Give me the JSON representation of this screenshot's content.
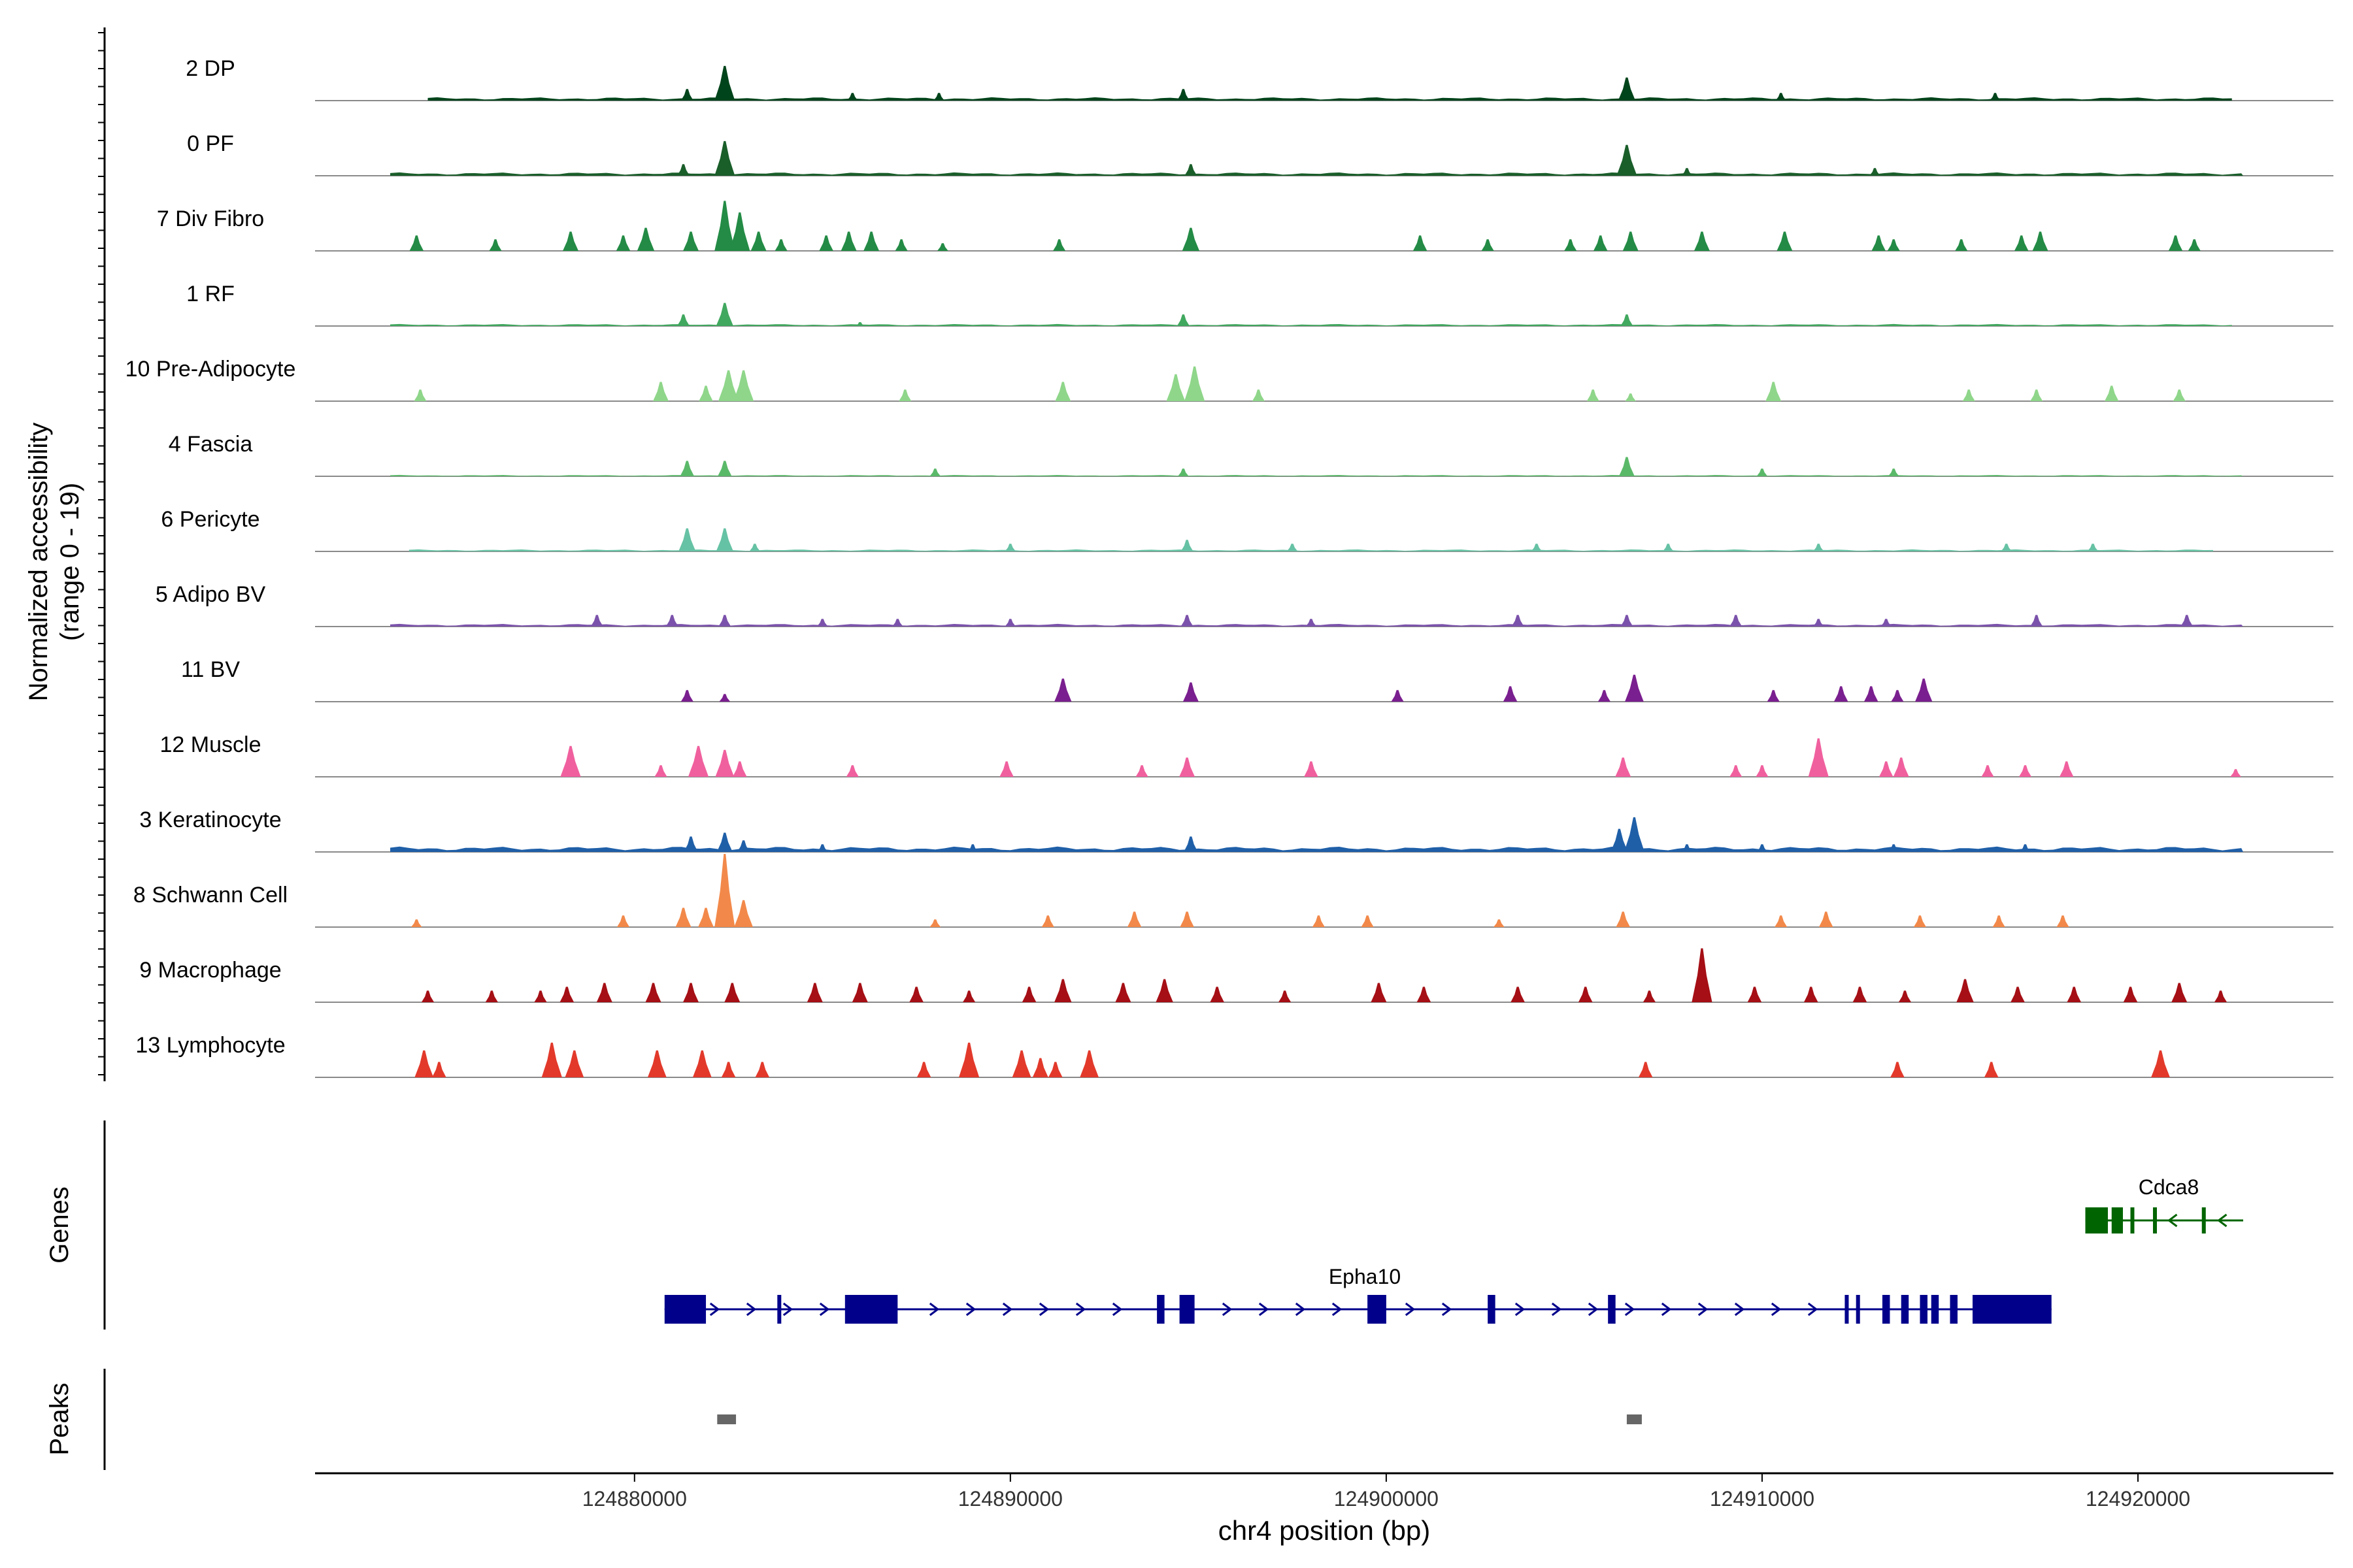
{
  "chart_data": {
    "type": "area",
    "title": "",
    "ylabel_line1": "Normalized accessibility",
    "ylabel_line2": "(range 0 - 19)",
    "xlabel": "chr4 position (bp)",
    "xlim": [
      124871500,
      124925200
    ],
    "ylim": [
      0,
      19
    ],
    "x_ticks": [
      124880000,
      124890000,
      124900000,
      124910000,
      124920000
    ],
    "x_tick_labels": [
      "124880000",
      "124890000",
      "124900000",
      "124910000",
      "124920000"
    ],
    "section_labels": {
      "genes": "Genes",
      "peaks": "Peaks"
    },
    "series": [
      {
        "name": "2 DP",
        "color": "#00441b",
        "baseline": 0.25,
        "spread": [
          124874500,
          124922500
        ],
        "peaks": [
          [
            124882400,
            9
          ],
          [
            124906400,
            6
          ],
          [
            124881400,
            3
          ],
          [
            124894600,
            3
          ],
          [
            124885800,
            2
          ],
          [
            124910500,
            2
          ],
          [
            124916200,
            2
          ],
          [
            124888100,
            2
          ]
        ]
      },
      {
        "name": "0 PF",
        "color": "#1a5e2a",
        "baseline": 0.25,
        "spread": [
          124873500,
          124922800
        ],
        "peaks": [
          [
            124882400,
            9
          ],
          [
            124906400,
            8
          ],
          [
            124881300,
            3
          ],
          [
            124894800,
            3
          ],
          [
            124908000,
            2
          ],
          [
            124913000,
            2
          ]
        ]
      },
      {
        "name": "7 Div Fibro",
        "color": "#238b45",
        "baseline": 0,
        "spread": null,
        "peaks": [
          [
            124874200,
            4
          ],
          [
            124876300,
            3
          ],
          [
            124878300,
            5
          ],
          [
            124879700,
            4
          ],
          [
            124880300,
            6
          ],
          [
            124881500,
            5
          ],
          [
            124882400,
            13
          ],
          [
            124882800,
            10
          ],
          [
            124883300,
            5
          ],
          [
            124883900,
            3
          ],
          [
            124885100,
            4
          ],
          [
            124885700,
            5
          ],
          [
            124886300,
            5
          ],
          [
            124887100,
            3
          ],
          [
            124888200,
            2
          ],
          [
            124891300,
            3
          ],
          [
            124894800,
            6
          ],
          [
            124900900,
            4
          ],
          [
            124902700,
            3
          ],
          [
            124904900,
            3
          ],
          [
            124905700,
            4
          ],
          [
            124906500,
            5
          ],
          [
            124908400,
            5
          ],
          [
            124910600,
            5
          ],
          [
            124913100,
            4
          ],
          [
            124913500,
            3
          ],
          [
            124915300,
            3
          ],
          [
            124916900,
            4
          ],
          [
            124917400,
            5
          ],
          [
            124921000,
            4
          ],
          [
            124921500,
            3
          ]
        ]
      },
      {
        "name": "1 RF",
        "color": "#41a85f",
        "baseline": 0.15,
        "spread": [
          124873500,
          124922500
        ],
        "peaks": [
          [
            124882400,
            6
          ],
          [
            124881300,
            3
          ],
          [
            124894600,
            3
          ],
          [
            124906400,
            3
          ],
          [
            124886000,
            1
          ]
        ]
      },
      {
        "name": "10 Pre-Adipocyte",
        "color": "#8fd68a",
        "baseline": 0,
        "spread": null,
        "peaks": [
          [
            124874300,
            3
          ],
          [
            124880700,
            5
          ],
          [
            124881900,
            4
          ],
          [
            124882500,
            8
          ],
          [
            124882900,
            8
          ],
          [
            124887200,
            3
          ],
          [
            124891400,
            5
          ],
          [
            124894400,
            7
          ],
          [
            124894900,
            9
          ],
          [
            124896600,
            3
          ],
          [
            124905500,
            3
          ],
          [
            124906500,
            2
          ],
          [
            124910300,
            5
          ],
          [
            124915500,
            3
          ],
          [
            124917300,
            3
          ],
          [
            124919300,
            4
          ],
          [
            124921100,
            3
          ]
        ]
      },
      {
        "name": "4 Fascia",
        "color": "#5ab969",
        "baseline": 0.1,
        "spread": [
          124873500,
          124922800
        ],
        "peaks": [
          [
            124881400,
            4
          ],
          [
            124882400,
            4
          ],
          [
            124906400,
            5
          ],
          [
            124894600,
            2
          ],
          [
            124888000,
            2
          ],
          [
            124910000,
            2
          ],
          [
            124913500,
            2
          ]
        ]
      },
      {
        "name": "6 Pericyte",
        "color": "#66c2a4",
        "baseline": 0.15,
        "spread": [
          124874000,
          124922000
        ],
        "peaks": [
          [
            124881400,
            6
          ],
          [
            124882400,
            6
          ],
          [
            124883200,
            2
          ],
          [
            124894700,
            3
          ],
          [
            124890000,
            2
          ],
          [
            124897500,
            2
          ],
          [
            124904000,
            2
          ],
          [
            124907500,
            2
          ],
          [
            124911500,
            2
          ],
          [
            124916500,
            2
          ],
          [
            124918800,
            2
          ]
        ]
      },
      {
        "name": "5 Adipo BV",
        "color": "#7b52ab",
        "baseline": 0.2,
        "spread": [
          124873500,
          124922800
        ],
        "peaks": [
          [
            124879000,
            3
          ],
          [
            124881000,
            3
          ],
          [
            124882400,
            3
          ],
          [
            124885000,
            2
          ],
          [
            124887000,
            2
          ],
          [
            124890000,
            2
          ],
          [
            124894700,
            3
          ],
          [
            124898000,
            2
          ],
          [
            124903500,
            3
          ],
          [
            124906400,
            3
          ],
          [
            124909300,
            3
          ],
          [
            124911500,
            2
          ],
          [
            124913300,
            2
          ],
          [
            124917300,
            3
          ],
          [
            124921300,
            3
          ]
        ]
      },
      {
        "name": "11 BV",
        "color": "#7a1f8f",
        "baseline": 0,
        "spread": null,
        "peaks": [
          [
            124881400,
            3
          ],
          [
            124882400,
            2
          ],
          [
            124891400,
            6
          ],
          [
            124894800,
            5
          ],
          [
            124900300,
            3
          ],
          [
            124903300,
            4
          ],
          [
            124905800,
            3
          ],
          [
            124906600,
            7
          ],
          [
            124910300,
            3
          ],
          [
            124912100,
            4
          ],
          [
            124912900,
            4
          ],
          [
            124913600,
            3
          ],
          [
            124914300,
            6
          ]
        ]
      },
      {
        "name": "12 Muscle",
        "color": "#f0609e",
        "baseline": 0,
        "spread": null,
        "peaks": [
          [
            124878300,
            8
          ],
          [
            124880700,
            3
          ],
          [
            124881700,
            8
          ],
          [
            124882400,
            7
          ],
          [
            124882800,
            4
          ],
          [
            124885800,
            3
          ],
          [
            124889900,
            4
          ],
          [
            124893500,
            3
          ],
          [
            124894700,
            5
          ],
          [
            124898000,
            4
          ],
          [
            124906300,
            5
          ],
          [
            124909300,
            3
          ],
          [
            124910000,
            3
          ],
          [
            124911500,
            10
          ],
          [
            124913300,
            4
          ],
          [
            124913700,
            5
          ],
          [
            124916000,
            3
          ],
          [
            124917000,
            3
          ],
          [
            124918100,
            4
          ],
          [
            124922600,
            2
          ]
        ]
      },
      {
        "name": "3 Keratinocyte",
        "color": "#1f5fa8",
        "baseline": 0.4,
        "spread": [
          124873500,
          124922800
        ],
        "peaks": [
          [
            124881500,
            4
          ],
          [
            124882400,
            5
          ],
          [
            124882900,
            3
          ],
          [
            124894800,
            4
          ],
          [
            124906200,
            6
          ],
          [
            124906600,
            9
          ],
          [
            124908000,
            2
          ],
          [
            124910000,
            2
          ],
          [
            124913500,
            2
          ],
          [
            124917000,
            2
          ],
          [
            124885000,
            2
          ],
          [
            124889000,
            2
          ]
        ]
      },
      {
        "name": "8 Schwann Cell",
        "color": "#f2894a",
        "baseline": 0,
        "spread": null,
        "peaks": [
          [
            124874200,
            2
          ],
          [
            124879700,
            3
          ],
          [
            124881300,
            5
          ],
          [
            124881900,
            5
          ],
          [
            124882400,
            19
          ],
          [
            124882900,
            7
          ],
          [
            124888000,
            2
          ],
          [
            124891000,
            3
          ],
          [
            124893300,
            4
          ],
          [
            124894700,
            4
          ],
          [
            124898200,
            3
          ],
          [
            124899500,
            3
          ],
          [
            124903000,
            2
          ],
          [
            124906300,
            4
          ],
          [
            124910500,
            3
          ],
          [
            124911700,
            4
          ],
          [
            124914200,
            3
          ],
          [
            124916300,
            3
          ],
          [
            124918000,
            3
          ]
        ]
      },
      {
        "name": "9 Macrophage",
        "color": "#a50f15",
        "baseline": 0,
        "spread": null,
        "peaks": [
          [
            124874500,
            3
          ],
          [
            124876200,
            3
          ],
          [
            124877500,
            3
          ],
          [
            124878200,
            4
          ],
          [
            124879200,
            5
          ],
          [
            124880500,
            5
          ],
          [
            124881500,
            5
          ],
          [
            124882600,
            5
          ],
          [
            124884800,
            5
          ],
          [
            124886000,
            5
          ],
          [
            124887500,
            4
          ],
          [
            124888900,
            3
          ],
          [
            124890500,
            4
          ],
          [
            124891400,
            6
          ],
          [
            124893000,
            5
          ],
          [
            124894100,
            6
          ],
          [
            124895500,
            4
          ],
          [
            124897300,
            3
          ],
          [
            124899800,
            5
          ],
          [
            124901000,
            4
          ],
          [
            124903500,
            4
          ],
          [
            124905300,
            4
          ],
          [
            124907000,
            3
          ],
          [
            124908400,
            14
          ],
          [
            124909800,
            4
          ],
          [
            124911300,
            4
          ],
          [
            124912600,
            4
          ],
          [
            124913800,
            3
          ],
          [
            124915400,
            6
          ],
          [
            124916800,
            4
          ],
          [
            124918300,
            4
          ],
          [
            124919800,
            4
          ],
          [
            124921100,
            5
          ],
          [
            124922200,
            3
          ]
        ]
      },
      {
        "name": "13 Lymphocyte",
        "color": "#e2392b",
        "baseline": 0,
        "spread": null,
        "peaks": [
          [
            124874400,
            7
          ],
          [
            124874800,
            4
          ],
          [
            124877800,
            9
          ],
          [
            124878400,
            7
          ],
          [
            124880600,
            7
          ],
          [
            124881800,
            7
          ],
          [
            124882500,
            4
          ],
          [
            124883400,
            4
          ],
          [
            124887700,
            4
          ],
          [
            124888900,
            9
          ],
          [
            124890300,
            7
          ],
          [
            124890800,
            5
          ],
          [
            124891200,
            4
          ],
          [
            124892100,
            7
          ],
          [
            124906900,
            4
          ],
          [
            124913600,
            4
          ],
          [
            124916100,
            4
          ],
          [
            124920600,
            7
          ]
        ]
      }
    ],
    "genes": [
      {
        "name": "Epha10",
        "strand": "+",
        "color": "#00008b",
        "start": 124880800,
        "end": 124917700,
        "exons": [
          [
            124880800,
            124881900
          ],
          [
            124883800,
            124883900
          ],
          [
            124885600,
            124887000
          ],
          [
            124893900,
            124894100
          ],
          [
            124894500,
            124894900
          ],
          [
            124899500,
            124900000
          ],
          [
            124902700,
            124902900
          ],
          [
            124905900,
            124906100
          ],
          [
            124912200,
            124912300
          ],
          [
            124912500,
            124912600
          ],
          [
            124913200,
            124913400
          ],
          [
            124913700,
            124913900
          ],
          [
            124914200,
            124914400
          ],
          [
            124914500,
            124914700
          ],
          [
            124915000,
            124915200
          ],
          [
            124915600,
            124917700
          ]
        ]
      },
      {
        "name": "Cdca8",
        "strand": "-",
        "color": "#006400",
        "start": 124918600,
        "end": 124922800,
        "exons": [
          [
            124918600,
            124919200
          ],
          [
            124919300,
            124919600
          ],
          [
            124919800,
            124919900
          ],
          [
            124920400,
            124920500
          ],
          [
            124921700,
            124921800
          ]
        ]
      }
    ],
    "peaks_track": [
      [
        124882200,
        124882700
      ],
      [
        124906400,
        124906800
      ]
    ],
    "peak_color": "#666666"
  }
}
